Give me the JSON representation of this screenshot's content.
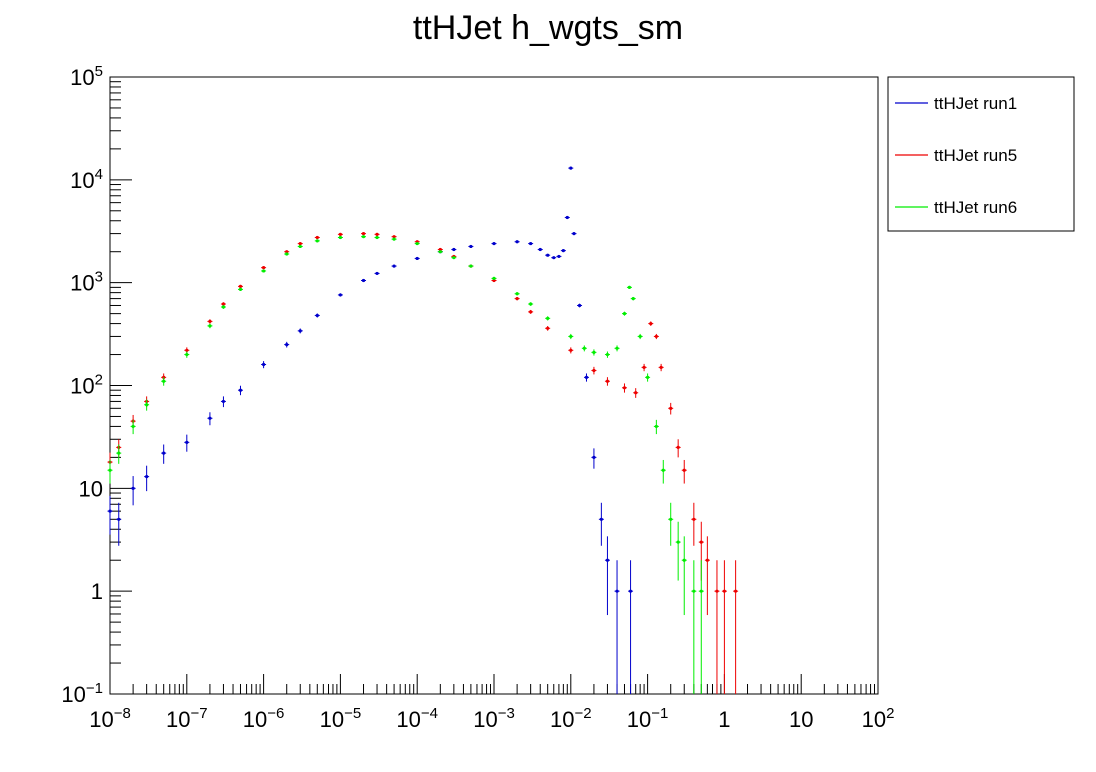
{
  "chart_data": {
    "type": "scatter",
    "title": "ttHJet h_wgts_sm",
    "xlabel": "",
    "ylabel": "",
    "xscale": "log",
    "yscale": "log",
    "xlim": [
      1e-08,
      100
    ],
    "ylim": [
      0.1,
      100000
    ],
    "grid": false,
    "legend_position": "top-right, outside plot area",
    "x_ticks": [
      {
        "base": "10",
        "exp": "−8"
      },
      {
        "base": "10",
        "exp": "−7"
      },
      {
        "base": "10",
        "exp": "−6"
      },
      {
        "base": "10",
        "exp": "−5"
      },
      {
        "base": "10",
        "exp": "−4"
      },
      {
        "base": "10",
        "exp": "−3"
      },
      {
        "base": "10",
        "exp": "−2"
      },
      {
        "base": "10",
        "exp": "−1"
      },
      {
        "base": "1",
        "exp": ""
      },
      {
        "base": "10",
        "exp": ""
      },
      {
        "base": "10",
        "exp": "2"
      }
    ],
    "y_ticks": [
      {
        "base": "10",
        "exp": "−1"
      },
      {
        "base": "1",
        "exp": ""
      },
      {
        "base": "10",
        "exp": ""
      },
      {
        "base": "10",
        "exp": "2"
      },
      {
        "base": "10",
        "exp": "3"
      },
      {
        "base": "10",
        "exp": "4"
      },
      {
        "base": "10",
        "exp": "5"
      }
    ],
    "series": [
      {
        "name": "ttHJet run1",
        "color": "#0000cc",
        "x": [
          1e-08,
          1.3e-08,
          2e-08,
          3e-08,
          5e-08,
          1e-07,
          2e-07,
          3e-07,
          5e-07,
          1e-06,
          2e-06,
          3e-06,
          5e-06,
          1e-05,
          2e-05,
          3e-05,
          5e-05,
          0.0001,
          0.0002,
          0.0003,
          0.0005,
          0.001,
          0.002,
          0.003,
          0.004,
          0.005,
          0.006,
          0.007,
          0.008,
          0.009,
          0.01,
          0.011,
          0.013,
          0.016,
          0.02,
          0.025,
          0.03,
          0.04,
          0.06
        ],
        "y": [
          6,
          5,
          10,
          13,
          22,
          28,
          48,
          70,
          90,
          160,
          250,
          340,
          480,
          760,
          1050,
          1230,
          1450,
          1720,
          2000,
          2100,
          2250,
          2400,
          2500,
          2400,
          2100,
          1850,
          1750,
          1800,
          2050,
          4300,
          13000,
          3000,
          600,
          120,
          20,
          5,
          2,
          1,
          1
        ]
      },
      {
        "name": "ttHJet run5",
        "color": "#ee0000",
        "x": [
          1e-08,
          1.3e-08,
          2e-08,
          3e-08,
          5e-08,
          1e-07,
          2e-07,
          3e-07,
          5e-07,
          1e-06,
          2e-06,
          3e-06,
          5e-06,
          1e-05,
          2e-05,
          3e-05,
          5e-05,
          0.0001,
          0.0002,
          0.0003,
          0.0005,
          0.001,
          0.002,
          0.003,
          0.005,
          0.01,
          0.02,
          0.03,
          0.05,
          0.07,
          0.09,
          0.11,
          0.13,
          0.15,
          0.2,
          0.25,
          0.3,
          0.4,
          0.5,
          0.6,
          0.8,
          1,
          1.4
        ],
        "y": [
          18,
          25,
          45,
          70,
          120,
          220,
          420,
          620,
          920,
          1400,
          2000,
          2400,
          2750,
          2950,
          3000,
          2950,
          2800,
          2500,
          2100,
          1800,
          1450,
          1050,
          700,
          520,
          360,
          220,
          140,
          110,
          95,
          85,
          150,
          400,
          300,
          150,
          60,
          25,
          15,
          5,
          3,
          2,
          1,
          1,
          1
        ]
      },
      {
        "name": "ttHJet run6",
        "color": "#00ee00",
        "x": [
          1e-08,
          1.3e-08,
          2e-08,
          3e-08,
          5e-08,
          1e-07,
          2e-07,
          3e-07,
          5e-07,
          1e-06,
          2e-06,
          3e-06,
          5e-06,
          1e-05,
          2e-05,
          3e-05,
          5e-05,
          0.0001,
          0.0002,
          0.0003,
          0.0005,
          0.001,
          0.002,
          0.003,
          0.005,
          0.01,
          0.015,
          0.02,
          0.03,
          0.04,
          0.05,
          0.058,
          0.065,
          0.08,
          0.1,
          0.13,
          0.16,
          0.2,
          0.25,
          0.3,
          0.4,
          0.5
        ],
        "y": [
          15,
          22,
          40,
          65,
          110,
          200,
          380,
          580,
          860,
          1300,
          1900,
          2250,
          2550,
          2750,
          2800,
          2750,
          2650,
          2400,
          2000,
          1750,
          1450,
          1100,
          780,
          620,
          450,
          300,
          230,
          210,
          200,
          230,
          500,
          900,
          700,
          300,
          120,
          40,
          15,
          5,
          3,
          2,
          1,
          1
        ]
      }
    ]
  }
}
